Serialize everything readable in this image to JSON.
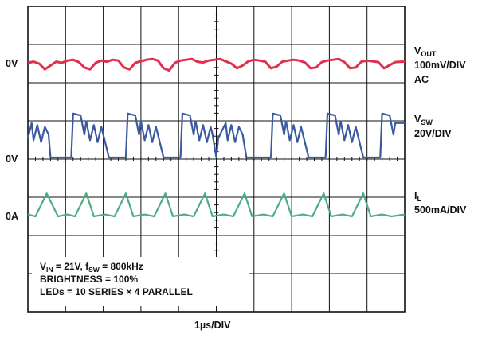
{
  "chart_data": {
    "type": "line",
    "xlabel": "1µs/DIV",
    "grid": true,
    "x_divisions": 10,
    "y_divisions": 8,
    "markers": {
      "vout_zero": "0V",
      "vsw_zero": "0V",
      "il_zero": "0A"
    },
    "channels": {
      "vout": {
        "name_main": "V",
        "name_sub": "OUT",
        "scale": "100mV/DIV",
        "coupling": "AC",
        "color": "#e02f4f"
      },
      "vsw": {
        "name_main": "V",
        "name_sub": "SW",
        "scale": "20V/DIV",
        "color": "#3a5aa0"
      },
      "il": {
        "name_main": "I",
        "name_sub": "L",
        "scale": "500mA/DIV",
        "color": "#4cae84"
      }
    },
    "series": [
      {
        "name": "VOUT",
        "x_unit": "div",
        "y_unit": "div above VOUT 0V marker",
        "x": [
          0,
          0.15,
          0.3,
          0.45,
          0.6,
          0.75,
          0.9,
          1.05,
          1.2,
          1.35,
          1.5,
          1.65,
          1.8,
          1.95,
          2.1,
          2.25,
          2.4,
          2.55,
          2.7,
          2.85,
          3.0,
          3.15,
          3.3,
          3.45,
          3.6,
          3.75,
          3.9,
          4.05,
          4.2,
          4.35,
          4.5,
          4.65,
          4.8,
          4.95,
          5.1,
          5.25,
          5.4,
          5.55,
          5.7,
          5.85,
          6.0,
          6.15,
          6.3,
          6.45,
          6.6,
          6.75,
          6.9,
          7.05,
          7.2,
          7.35,
          7.5,
          7.65,
          7.8,
          7.95,
          8.1,
          8.25,
          8.4,
          8.55,
          8.7,
          8.85,
          9.0,
          9.15,
          9.3,
          9.45,
          9.6,
          9.75,
          9.9,
          10.0
        ],
        "y": [
          0.02,
          0.05,
          0.0,
          -0.15,
          -0.05,
          0.05,
          0.02,
          0.08,
          0.1,
          0.04,
          -0.1,
          -0.15,
          0.02,
          0.08,
          0.05,
          0.1,
          0.08,
          -0.1,
          -0.15,
          0.02,
          0.06,
          0.1,
          0.12,
          0.08,
          -0.12,
          -0.18,
          0.02,
          0.08,
          0.1,
          0.12,
          0.05,
          0.03,
          0.08,
          0.1,
          0.12,
          0.06,
          0.0,
          -0.12,
          -0.05,
          0.06,
          0.1,
          0.08,
          0.05,
          -0.12,
          -0.08,
          0.05,
          0.08,
          0.1,
          0.08,
          0.03,
          -0.12,
          -0.1,
          0.04,
          0.08,
          0.1,
          0.12,
          0.04,
          -0.12,
          -0.1,
          0.05,
          0.08,
          0.06,
          0.04,
          -0.12,
          -0.04,
          0.04,
          0.05,
          0.05
        ]
      },
      {
        "name": "VSW",
        "x_unit": "div",
        "y_unit": "div above VSW 0V marker",
        "x": [
          0,
          0.1,
          0.15,
          0.25,
          0.35,
          0.45,
          0.55,
          0.6,
          0.75,
          1.0,
          1.15,
          1.2,
          1.4,
          1.5,
          1.55,
          1.65,
          1.75,
          1.85,
          1.95,
          2.0,
          2.15,
          2.45,
          2.6,
          2.65,
          2.85,
          2.95,
          3.0,
          3.1,
          3.2,
          3.3,
          3.4,
          3.45,
          3.6,
          3.9,
          4.05,
          4.1,
          4.3,
          4.4,
          4.45,
          4.55,
          4.65,
          4.75,
          4.85,
          4.9,
          5.0,
          5.05,
          5.25,
          5.3,
          5.4,
          5.5,
          5.6,
          5.7,
          5.8,
          5.85,
          6.0,
          6.3,
          6.45,
          6.5,
          6.7,
          6.8,
          6.85,
          6.95,
          7.05,
          7.15,
          7.25,
          7.3,
          7.45,
          7.75,
          7.9,
          7.95,
          8.15,
          8.25,
          8.3,
          8.4,
          8.5,
          8.6,
          8.7,
          8.75,
          8.9,
          9.2,
          9.35,
          9.4,
          9.6,
          9.7,
          9.75,
          10.0
        ],
        "y": [
          0.5,
          0.9,
          0.45,
          0.85,
          0.4,
          0.8,
          0.6,
          0.0,
          0.0,
          0.0,
          0.0,
          1.15,
          1.1,
          0.6,
          0.95,
          0.45,
          0.85,
          0.4,
          0.8,
          0.6,
          0.0,
          0.0,
          0.0,
          1.15,
          1.1,
          0.6,
          0.95,
          0.45,
          0.85,
          0.4,
          0.8,
          0.6,
          0.0,
          0.0,
          0.0,
          1.15,
          1.1,
          0.6,
          0.95,
          0.45,
          0.85,
          0.4,
          0.8,
          0.6,
          0.0,
          0.5,
          0.9,
          0.45,
          0.85,
          0.4,
          0.8,
          0.6,
          0.0,
          0.0,
          0.0,
          0.0,
          0.0,
          1.15,
          1.1,
          0.6,
          0.95,
          0.45,
          0.85,
          0.4,
          0.8,
          0.6,
          0.0,
          0.0,
          0.0,
          1.15,
          1.1,
          0.6,
          0.95,
          0.45,
          0.85,
          0.4,
          0.8,
          0.6,
          0.0,
          0.0,
          0.0,
          1.15,
          1.1,
          0.6,
          0.9,
          0.9
        ]
      },
      {
        "name": "IL",
        "x_unit": "div",
        "y_unit": "div above IL 0A marker",
        "x": [
          0,
          0.2,
          0.5,
          0.8,
          1.05,
          1.25,
          1.55,
          1.75,
          2.05,
          2.3,
          2.6,
          2.8,
          3.1,
          3.35,
          3.65,
          3.85,
          4.15,
          4.4,
          4.7,
          4.9,
          5.2,
          5.45,
          5.75,
          5.95,
          6.25,
          6.5,
          6.8,
          7.0,
          7.3,
          7.55,
          7.85,
          8.05,
          8.35,
          8.6,
          8.9,
          9.1,
          9.4,
          9.65,
          10.0
        ],
        "y": [
          0.05,
          0.0,
          0.6,
          0.0,
          0.05,
          0.0,
          0.6,
          0.0,
          0.05,
          0.0,
          0.6,
          0.0,
          0.05,
          0.0,
          0.6,
          0.0,
          0.05,
          0.0,
          0.6,
          0.0,
          0.05,
          0.0,
          0.6,
          0.0,
          0.05,
          0.0,
          0.6,
          0.0,
          0.05,
          0.0,
          0.6,
          0.0,
          0.05,
          0.0,
          0.6,
          0.0,
          0.05,
          0.0,
          0.05
        ]
      }
    ]
  },
  "info": {
    "line1": {
      "vin_main": "V",
      "vin_sub": "IN",
      "vin_value": " = 21V, ",
      "fsw_main": "f",
      "fsw_sub": "SW",
      "fsw_value": " = 800kHz"
    },
    "line2": "BRIGHTNESS = 100%",
    "line3": "LEDs = 10 SERIES × 4 PARALLEL"
  }
}
